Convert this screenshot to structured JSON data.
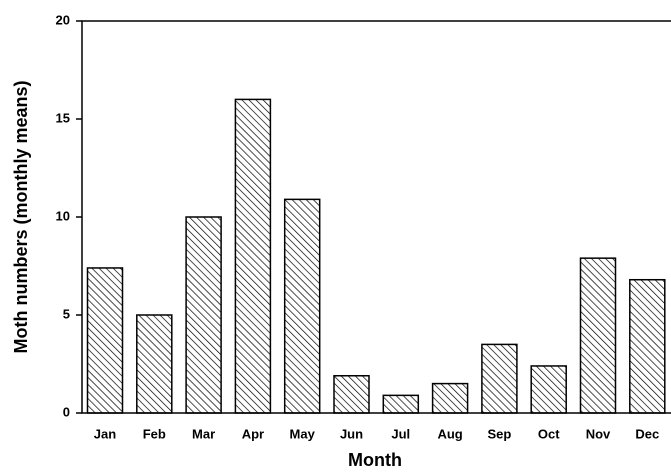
{
  "chart_data": {
    "type": "bar",
    "x_label": "Month",
    "y_label": "Moth numbers (monthly means)",
    "categories": [
      "Jan",
      "Feb",
      "Mar",
      "Apr",
      "May",
      "Jun",
      "Jul",
      "Aug",
      "Sep",
      "Oct",
      "Nov",
      "Dec"
    ],
    "values": [
      7.4,
      5,
      10,
      16,
      10.9,
      1.9,
      0.9,
      1.5,
      3.5,
      2.4,
      7.9,
      6.8
    ],
    "color": "#000000",
    "ylim": [
      0,
      20
    ],
    "yticks": [
      0,
      5,
      10,
      15,
      20
    ]
  }
}
